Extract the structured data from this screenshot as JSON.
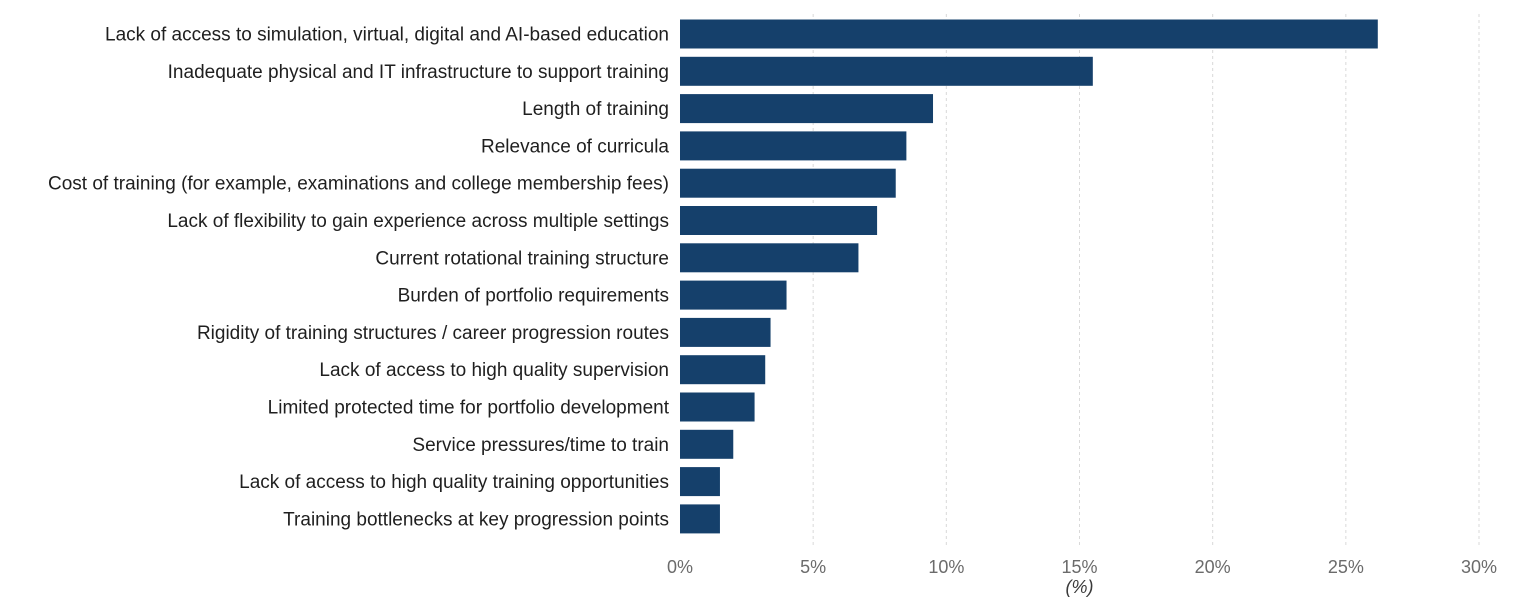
{
  "chart_data": {
    "type": "bar",
    "orientation": "horizontal",
    "categories": [
      "Lack of access to simulation, virtual, digital and AI-based education",
      "Inadequate physical and IT infrastructure to support training",
      "Length of training",
      "Relevance of curricula",
      "Cost of training (for example, examinations and college membership fees)",
      "Lack of flexibility to gain experience across multiple settings",
      "Current rotational training structure",
      "Burden of portfolio requirements",
      "Rigidity of training structures / career progression routes",
      "Lack of access to high quality supervision",
      "Limited protected time for portfolio development",
      "Service pressures/time to train",
      "Lack of access to high quality training opportunities",
      "Training bottlenecks at key progression points"
    ],
    "values": [
      26.2,
      15.5,
      9.5,
      8.5,
      8.1,
      7.4,
      6.7,
      4.0,
      3.4,
      3.2,
      2.8,
      2.0,
      1.5,
      1.5
    ],
    "title": "",
    "xlabel": "(%)",
    "ylabel": "",
    "xlim": [
      0,
      30
    ],
    "x_ticks": [
      0,
      5,
      10,
      15,
      20,
      25,
      30
    ],
    "x_tick_labels": [
      "0%",
      "5%",
      "10%",
      "15%",
      "20%",
      "25%",
      "30%"
    ],
    "grid": "vertical dotted",
    "legend": "none",
    "bar_color": "#15406b"
  }
}
